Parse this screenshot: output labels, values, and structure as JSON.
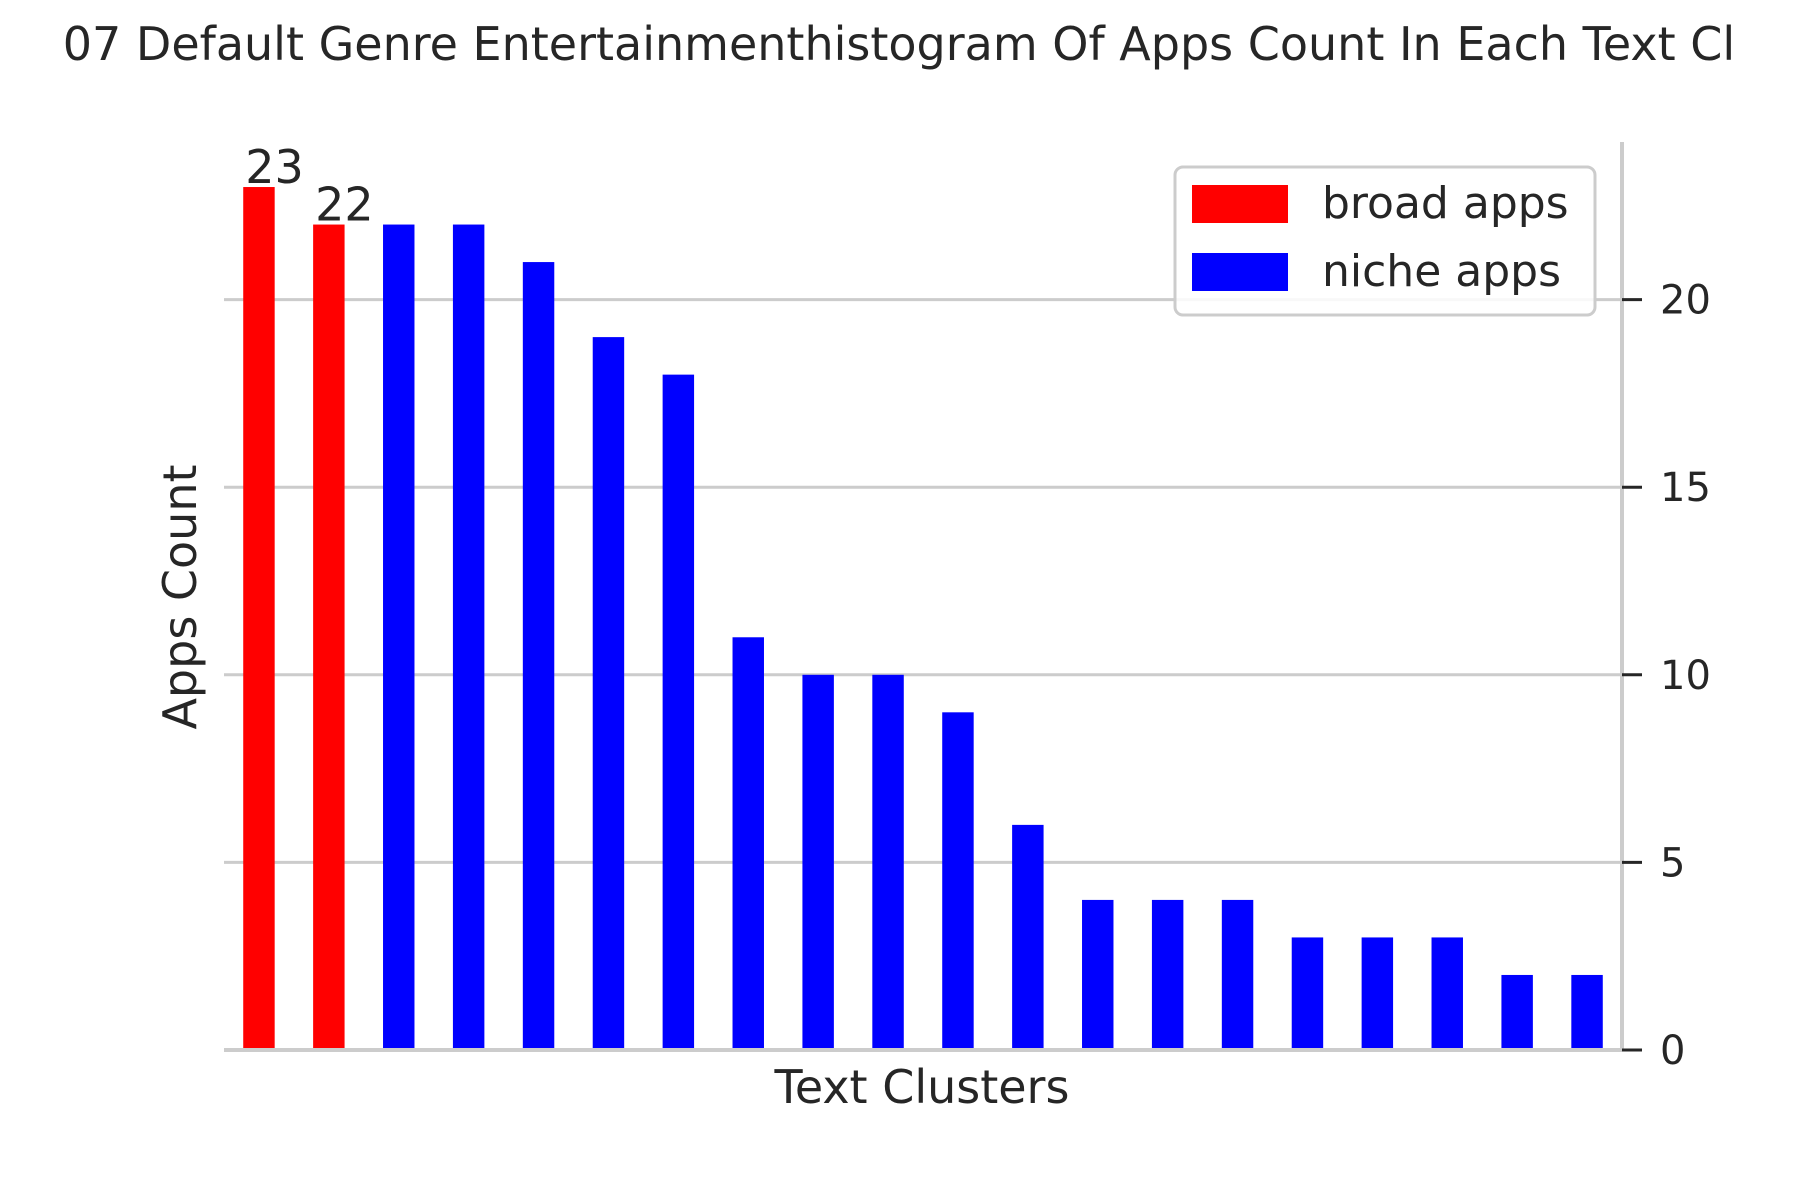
{
  "chart_data": {
    "type": "bar",
    "title": "07 Default Genre Entertainmenthistogram Of Apps Count In Each Text Cl",
    "xlabel": "Text Clusters",
    "ylabel": "Apps Count",
    "ylim": [
      0,
      24.2
    ],
    "yticks": [
      0,
      5,
      10,
      15,
      20
    ],
    "y_axis_side": "right",
    "grid": "horizontal",
    "legend_position": "top-right",
    "series": [
      {
        "name": "broad apps",
        "color": "#ff0000",
        "values": [
          23,
          22
        ]
      },
      {
        "name": "niche apps",
        "color": "#0000ff",
        "values": [
          22,
          22,
          21,
          19,
          18,
          11,
          10,
          10,
          9,
          6,
          4,
          4,
          4,
          3,
          3,
          3,
          2,
          2
        ]
      }
    ],
    "data_labels": [
      "23",
      "22"
    ]
  }
}
